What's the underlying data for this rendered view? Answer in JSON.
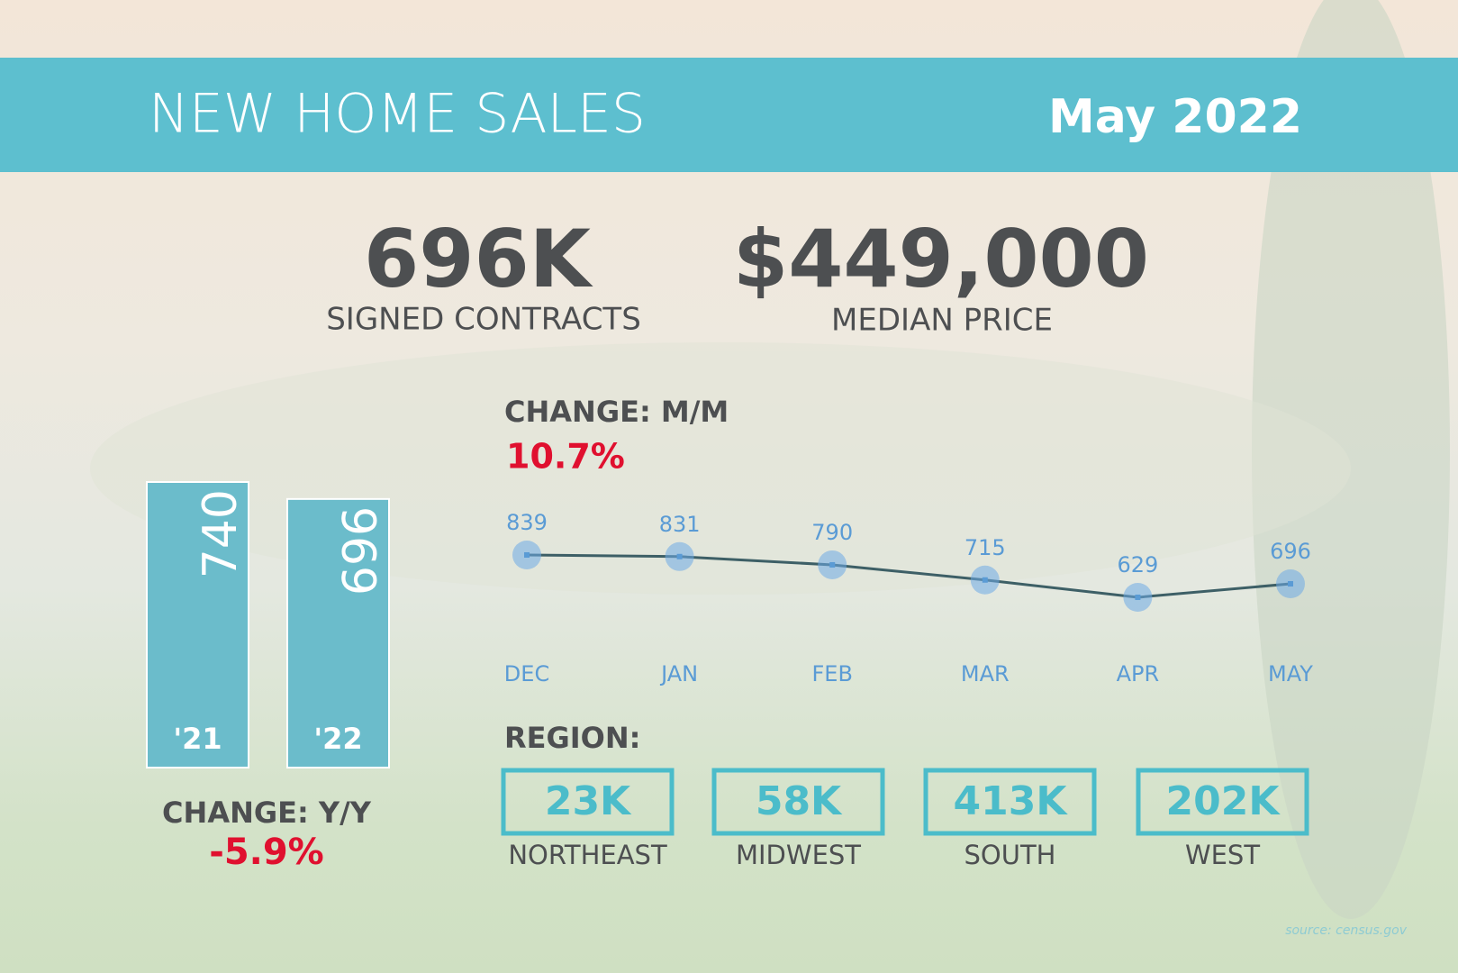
{
  "header": {
    "title": "NEW HOME SALES",
    "date": "May 2022"
  },
  "stats": [
    {
      "value": "696K",
      "label": "SIGNED CONTRACTS"
    },
    {
      "value": "$449,000",
      "label": "MEDIAN PRICE"
    }
  ],
  "chart_data": [
    {
      "type": "bar",
      "title": "CHANGE: Y/Y",
      "subtitle": "-5.9%",
      "categories": [
        "'21",
        "'22"
      ],
      "values": [
        740,
        696
      ],
      "color": "#6bbccb"
    },
    {
      "type": "line",
      "title": "CHANGE: M/M",
      "subtitle": "10.7%",
      "categories": [
        "DEC",
        "JAN",
        "FEB",
        "MAR",
        "APR",
        "MAY"
      ],
      "values": [
        839,
        831,
        790,
        715,
        629,
        696
      ],
      "color": "#3d5f66"
    }
  ],
  "region": {
    "title": "REGION:",
    "items": [
      {
        "value": "23K",
        "label": "NORTHEAST"
      },
      {
        "value": "58K",
        "label": "MIDWEST"
      },
      {
        "value": "413K",
        "label": "SOUTH"
      },
      {
        "value": "202K",
        "label": "WEST"
      }
    ]
  },
  "source": "source: census.gov"
}
